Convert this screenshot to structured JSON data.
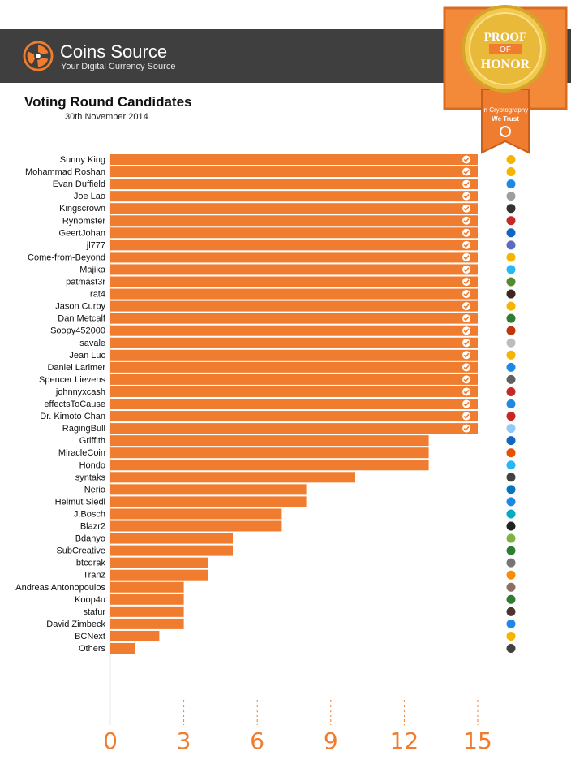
{
  "header": {
    "brand": "Coins Source",
    "tagline": "Your Digital Currency Source"
  },
  "badge": {
    "line1": "PROOF",
    "line2": "OF",
    "line3": "HONOR",
    "line4": "in Cryptography",
    "line5": "We Trust"
  },
  "colors": {
    "bar": "#f07c2f",
    "header": "#3f3f3f",
    "axis": "#f07c2f"
  },
  "chart_data": {
    "type": "bar",
    "orientation": "horizontal",
    "title": "Voting Round Candidates",
    "subtitle": "30th November 2014",
    "categories": [
      "Sunny King",
      "Mohammad Roshan",
      "Evan Duffield",
      "Joe Lao",
      "Kingscrown",
      "Rynomster",
      "GeertJohan",
      "jl777",
      "Come-from-Beyond",
      "Majika",
      "patmast3r",
      "rat4",
      "Jason Curby",
      "Dan Metcalf",
      "Soopy452000",
      "savale",
      "Jean Luc",
      "Daniel Larimer",
      "Spencer Lievens",
      "johnnyxcash",
      "effectsToCause",
      "Dr. Kimoto Chan",
      "RagingBull",
      "Griffith",
      "MiracleCoin",
      "Hondo",
      "syntaks",
      "Nerio",
      "Helmut Siedl",
      "J.Bosch",
      "Blazr2",
      "Bdanyo",
      "SubCreative",
      "btcdrak",
      "Tranz",
      "Andreas Antonopoulos",
      "Koop4u",
      "stafur",
      "David Zimbeck",
      "BCNext",
      "Others"
    ],
    "values": [
      15,
      15,
      15,
      15,
      15,
      15,
      15,
      15,
      15,
      15,
      15,
      15,
      15,
      15,
      15,
      15,
      15,
      15,
      15,
      15,
      15,
      15,
      15,
      13,
      13,
      13,
      10,
      8,
      8,
      7,
      7,
      5,
      5,
      4,
      4,
      3,
      3,
      3,
      3,
      2,
      1
    ],
    "xlim": [
      0,
      15
    ],
    "xticks": [
      "0",
      "3",
      "6",
      "9",
      "12",
      "15"
    ],
    "checkmark_rows": 23,
    "grid": true
  }
}
